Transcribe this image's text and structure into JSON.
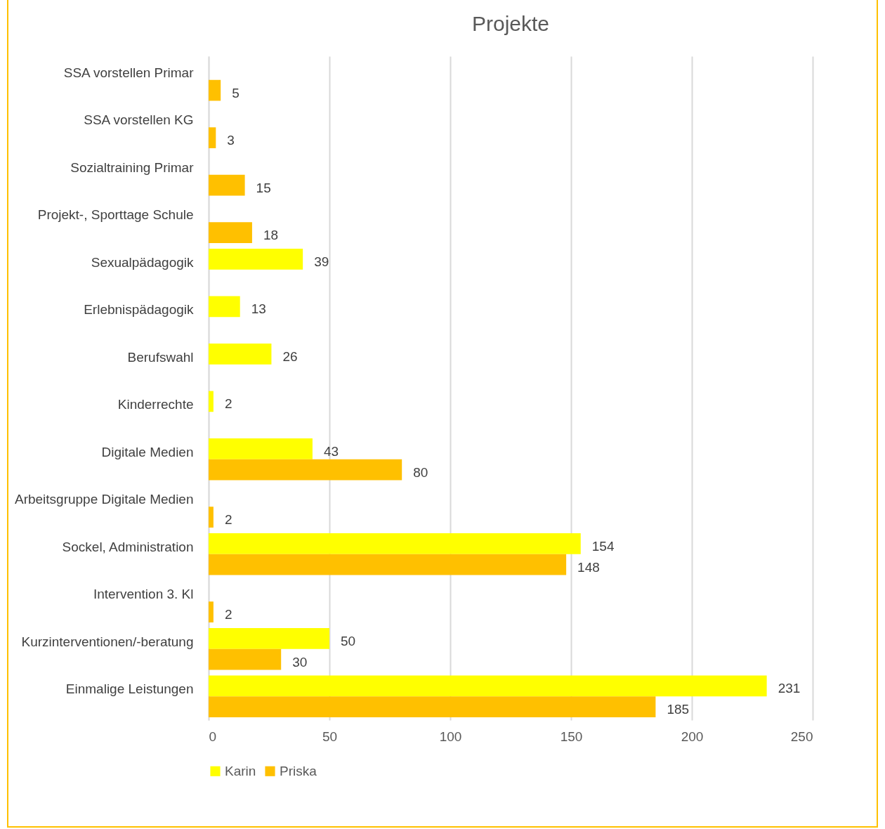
{
  "chart_data": {
    "type": "bar",
    "title": "Projekte",
    "orientation": "horizontal",
    "categories": [
      "SSA vorstellen Primar",
      "SSA vorstellen KG",
      "Sozialtraining Primar",
      "Projekt-, Sporttage Schule",
      "Sexualpädagogik",
      "Erlebnispädagogik",
      "Berufswahl",
      "Kinderrechte",
      "Digitale Medien",
      "Arbeitsgruppe Digitale Medien",
      "Sockel, Administration",
      "Intervention 3. Kl",
      "Kurzinterventionen/-beratung",
      "Einmalige Leistungen"
    ],
    "series": [
      {
        "name": "Karin",
        "color": "#ffff00",
        "values": [
          null,
          null,
          null,
          null,
          39,
          13,
          26,
          2,
          43,
          null,
          154,
          null,
          50,
          231
        ]
      },
      {
        "name": "Priska",
        "color": "#ffc000",
        "values": [
          5,
          3,
          15,
          18,
          null,
          null,
          null,
          null,
          80,
          2,
          148,
          2,
          30,
          185
        ]
      }
    ],
    "xlim": [
      0,
      250
    ],
    "xticks": [
      0,
      50,
      100,
      150,
      200,
      250
    ],
    "grid": "x",
    "legend": "bottom",
    "data_labels": true
  }
}
